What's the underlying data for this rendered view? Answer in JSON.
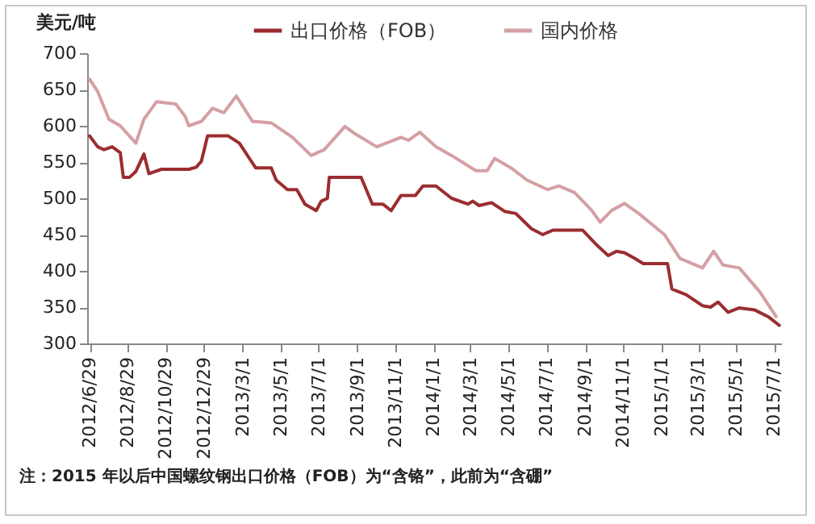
{
  "chart_data": {
    "type": "line",
    "ylabel": "美元/吨",
    "legend": "top",
    "grid": false,
    "marker": "none",
    "line_style": "solid",
    "annotations": [
      "注：2015 年以后中国螺纹钢出口价格（FOB）为“含铬”，此前为“含硼”"
    ],
    "ylim": [
      300,
      700
    ],
    "yticks": [
      300,
      350,
      400,
      450,
      500,
      550,
      600,
      650,
      700
    ],
    "xlim": [
      "2012-06-25",
      "2015-07-12"
    ],
    "xticks": [
      {
        "value": "2012-06-29",
        "label": "2012/6/29"
      },
      {
        "value": "2012-08-29",
        "label": "2012/8/29"
      },
      {
        "value": "2012-10-29",
        "label": "2012/10/29"
      },
      {
        "value": "2012-12-29",
        "label": "2012/12/29"
      },
      {
        "value": "2013-03-01",
        "label": "2013/3/1"
      },
      {
        "value": "2013-05-01",
        "label": "2013/5/1"
      },
      {
        "value": "2013-07-01",
        "label": "2013/7/1"
      },
      {
        "value": "2013-09-01",
        "label": "2013/9/1"
      },
      {
        "value": "2013-11-01",
        "label": "2013/11/1"
      },
      {
        "value": "2014-01-01",
        "label": "2014/1/1"
      },
      {
        "value": "2014-03-01",
        "label": "2014/3/1"
      },
      {
        "value": "2014-05-01",
        "label": "2014/5/1"
      },
      {
        "value": "2014-07-01",
        "label": "2014/7/1"
      },
      {
        "value": "2014-09-01",
        "label": "2014/9/1"
      },
      {
        "value": "2014-11-01",
        "label": "2014/11/1"
      },
      {
        "value": "2015-01-01",
        "label": "2015/1/1"
      },
      {
        "value": "2015-03-01",
        "label": "2015/3/1"
      },
      {
        "value": "2015-05-01",
        "label": "2015/5/1"
      },
      {
        "value": "2015-07-01",
        "label": "2015/7/1"
      }
    ],
    "series": [
      {
        "name": "出口价格（FOB）",
        "color": "#9b2d30",
        "x": [
          "2012-06-29",
          "2012-07-12",
          "2012-07-22",
          "2012-08-04",
          "2012-08-17",
          "2012-08-22",
          "2012-09-01",
          "2012-09-11",
          "2012-09-24",
          "2012-10-02",
          "2012-10-22",
          "2012-12-05",
          "2012-12-17",
          "2012-12-25",
          "2013-01-04",
          "2013-02-06",
          "2013-02-24",
          "2013-03-12",
          "2013-03-22",
          "2013-04-16",
          "2013-04-24",
          "2013-05-12",
          "2013-05-27",
          "2013-06-09",
          "2013-06-27",
          "2013-07-05",
          "2013-07-15",
          "2013-07-18",
          "2013-09-07",
          "2013-09-25",
          "2013-10-12",
          "2013-10-25",
          "2013-11-10",
          "2013-12-03",
          "2013-12-15",
          "2014-01-05",
          "2014-01-30",
          "2014-02-25",
          "2014-03-05",
          "2014-03-15",
          "2014-04-04",
          "2014-04-25",
          "2014-05-13",
          "2014-06-07",
          "2014-06-25",
          "2014-07-11",
          "2014-08-28",
          "2014-09-18",
          "2014-10-08",
          "2014-10-21",
          "2014-11-03",
          "2014-11-20",
          "2014-12-03",
          "2015-01-11",
          "2015-01-18",
          "2015-02-10",
          "2015-03-08",
          "2015-03-21",
          "2015-04-02",
          "2015-04-18",
          "2015-05-06",
          "2015-05-31",
          "2015-06-21",
          "2015-07-09"
        ],
        "values": [
          586,
          571,
          567,
          571,
          563,
          529,
          529,
          537,
          561,
          534,
          540,
          540,
          543,
          551,
          586,
          586,
          576,
          555,
          542,
          542,
          525,
          512,
          512,
          492,
          483,
          496,
          500,
          529,
          529,
          492,
          492,
          483,
          504,
          504,
          517,
          517,
          500,
          492,
          496,
          490,
          494,
          482,
          479,
          458,
          450,
          456,
          456,
          437,
          421,
          427,
          425,
          417,
          410,
          410,
          375,
          367,
          352,
          350,
          357,
          343,
          349,
          346,
          337,
          325
        ]
      },
      {
        "name": "国内价格",
        "color": "#d4a0a5",
        "x": [
          "2012-06-29",
          "2012-07-12",
          "2012-07-30",
          "2012-08-17",
          "2012-09-11",
          "2012-09-24",
          "2012-10-14",
          "2012-11-14",
          "2012-11-29",
          "2012-12-05",
          "2012-12-25",
          "2013-01-12",
          "2013-01-30",
          "2013-02-19",
          "2013-03-17",
          "2013-04-16",
          "2013-05-20",
          "2013-06-19",
          "2013-07-10",
          "2013-08-12",
          "2013-08-30",
          "2013-10-02",
          "2013-11-10",
          "2013-11-22",
          "2013-12-10",
          "2014-01-05",
          "2014-01-30",
          "2014-03-10",
          "2014-03-28",
          "2014-04-09",
          "2014-05-05",
          "2014-05-31",
          "2014-07-03",
          "2014-07-21",
          "2014-08-15",
          "2014-09-12",
          "2014-09-25",
          "2014-10-13",
          "2014-11-03",
          "2014-11-26",
          "2015-01-06",
          "2015-01-31",
          "2015-03-08",
          "2015-03-26",
          "2015-04-10",
          "2015-05-06",
          "2015-06-08",
          "2015-07-04"
        ],
        "values": [
          664,
          647,
          609,
          600,
          576,
          609,
          633,
          630,
          613,
          600,
          606,
          624,
          618,
          641,
          606,
          604,
          584,
          559,
          567,
          599,
          588,
          571,
          584,
          580,
          591,
          571,
          559,
          538,
          538,
          555,
          542,
          525,
          512,
          517,
          508,
          483,
          467,
          483,
          493,
          479,
          450,
          417,
          404,
          427,
          408,
          404,
          371,
          337
        ]
      }
    ]
  }
}
